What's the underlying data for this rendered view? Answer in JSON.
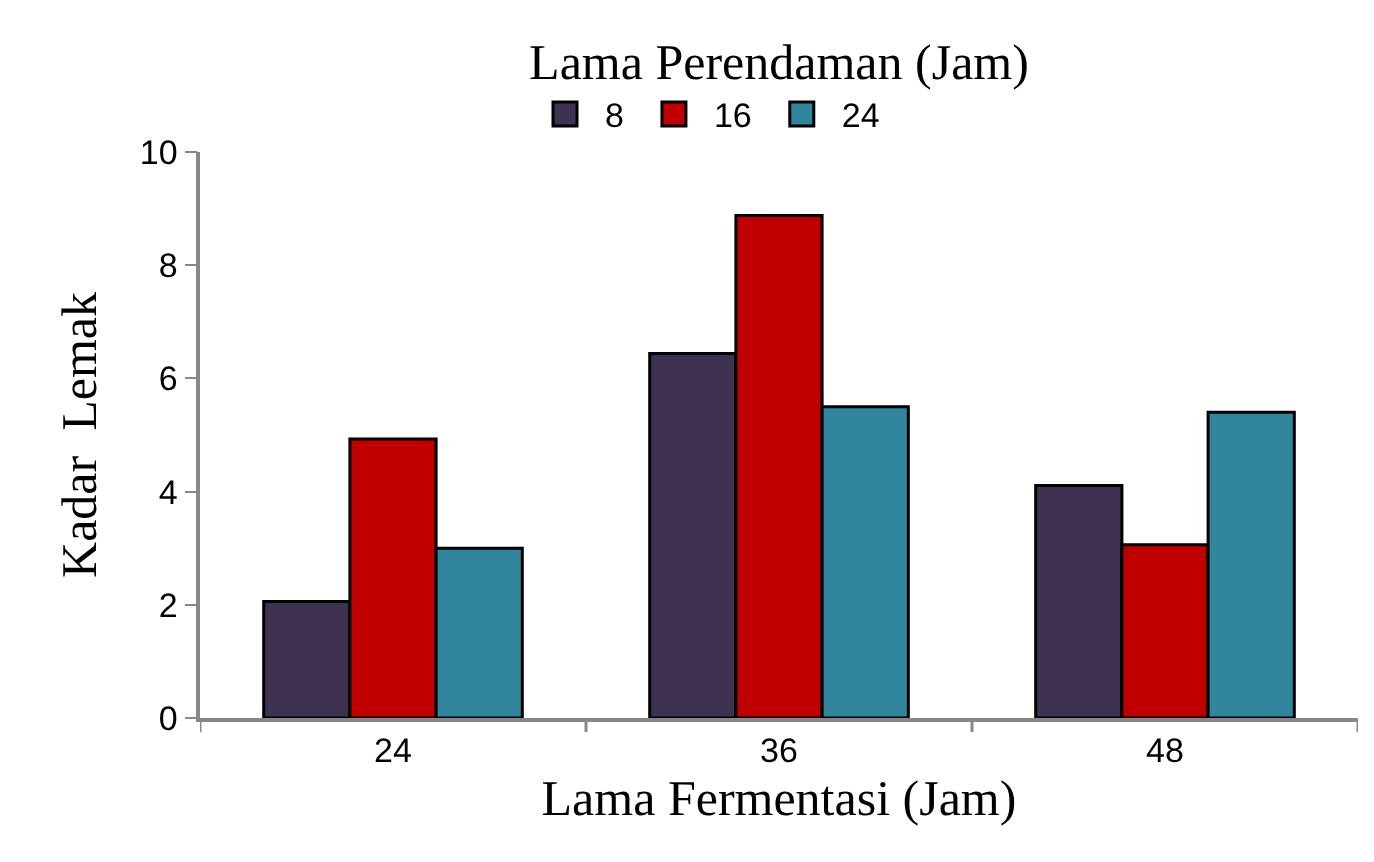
{
  "chart_data": {
    "type": "bar",
    "legend_title": "Lama Perendaman (Jam)",
    "xlabel": "Lama Fermentasi (Jam)",
    "ylabel": "Kadar  Lemak",
    "categories": [
      "24",
      "36",
      "48"
    ],
    "series": [
      {
        "name": "8",
        "color": "#3f3151",
        "values": [
          2.06,
          6.44,
          4.11
        ]
      },
      {
        "name": "16",
        "color": "#c00000",
        "values": [
          4.93,
          8.88,
          3.06
        ]
      },
      {
        "name": "24",
        "color": "#31859c",
        "values": [
          3.0,
          5.5,
          5.4
        ]
      }
    ],
    "ylim": [
      0,
      10
    ],
    "yticks": [
      0,
      2,
      4,
      6,
      8,
      10
    ],
    "grid": false,
    "legend": "top"
  }
}
